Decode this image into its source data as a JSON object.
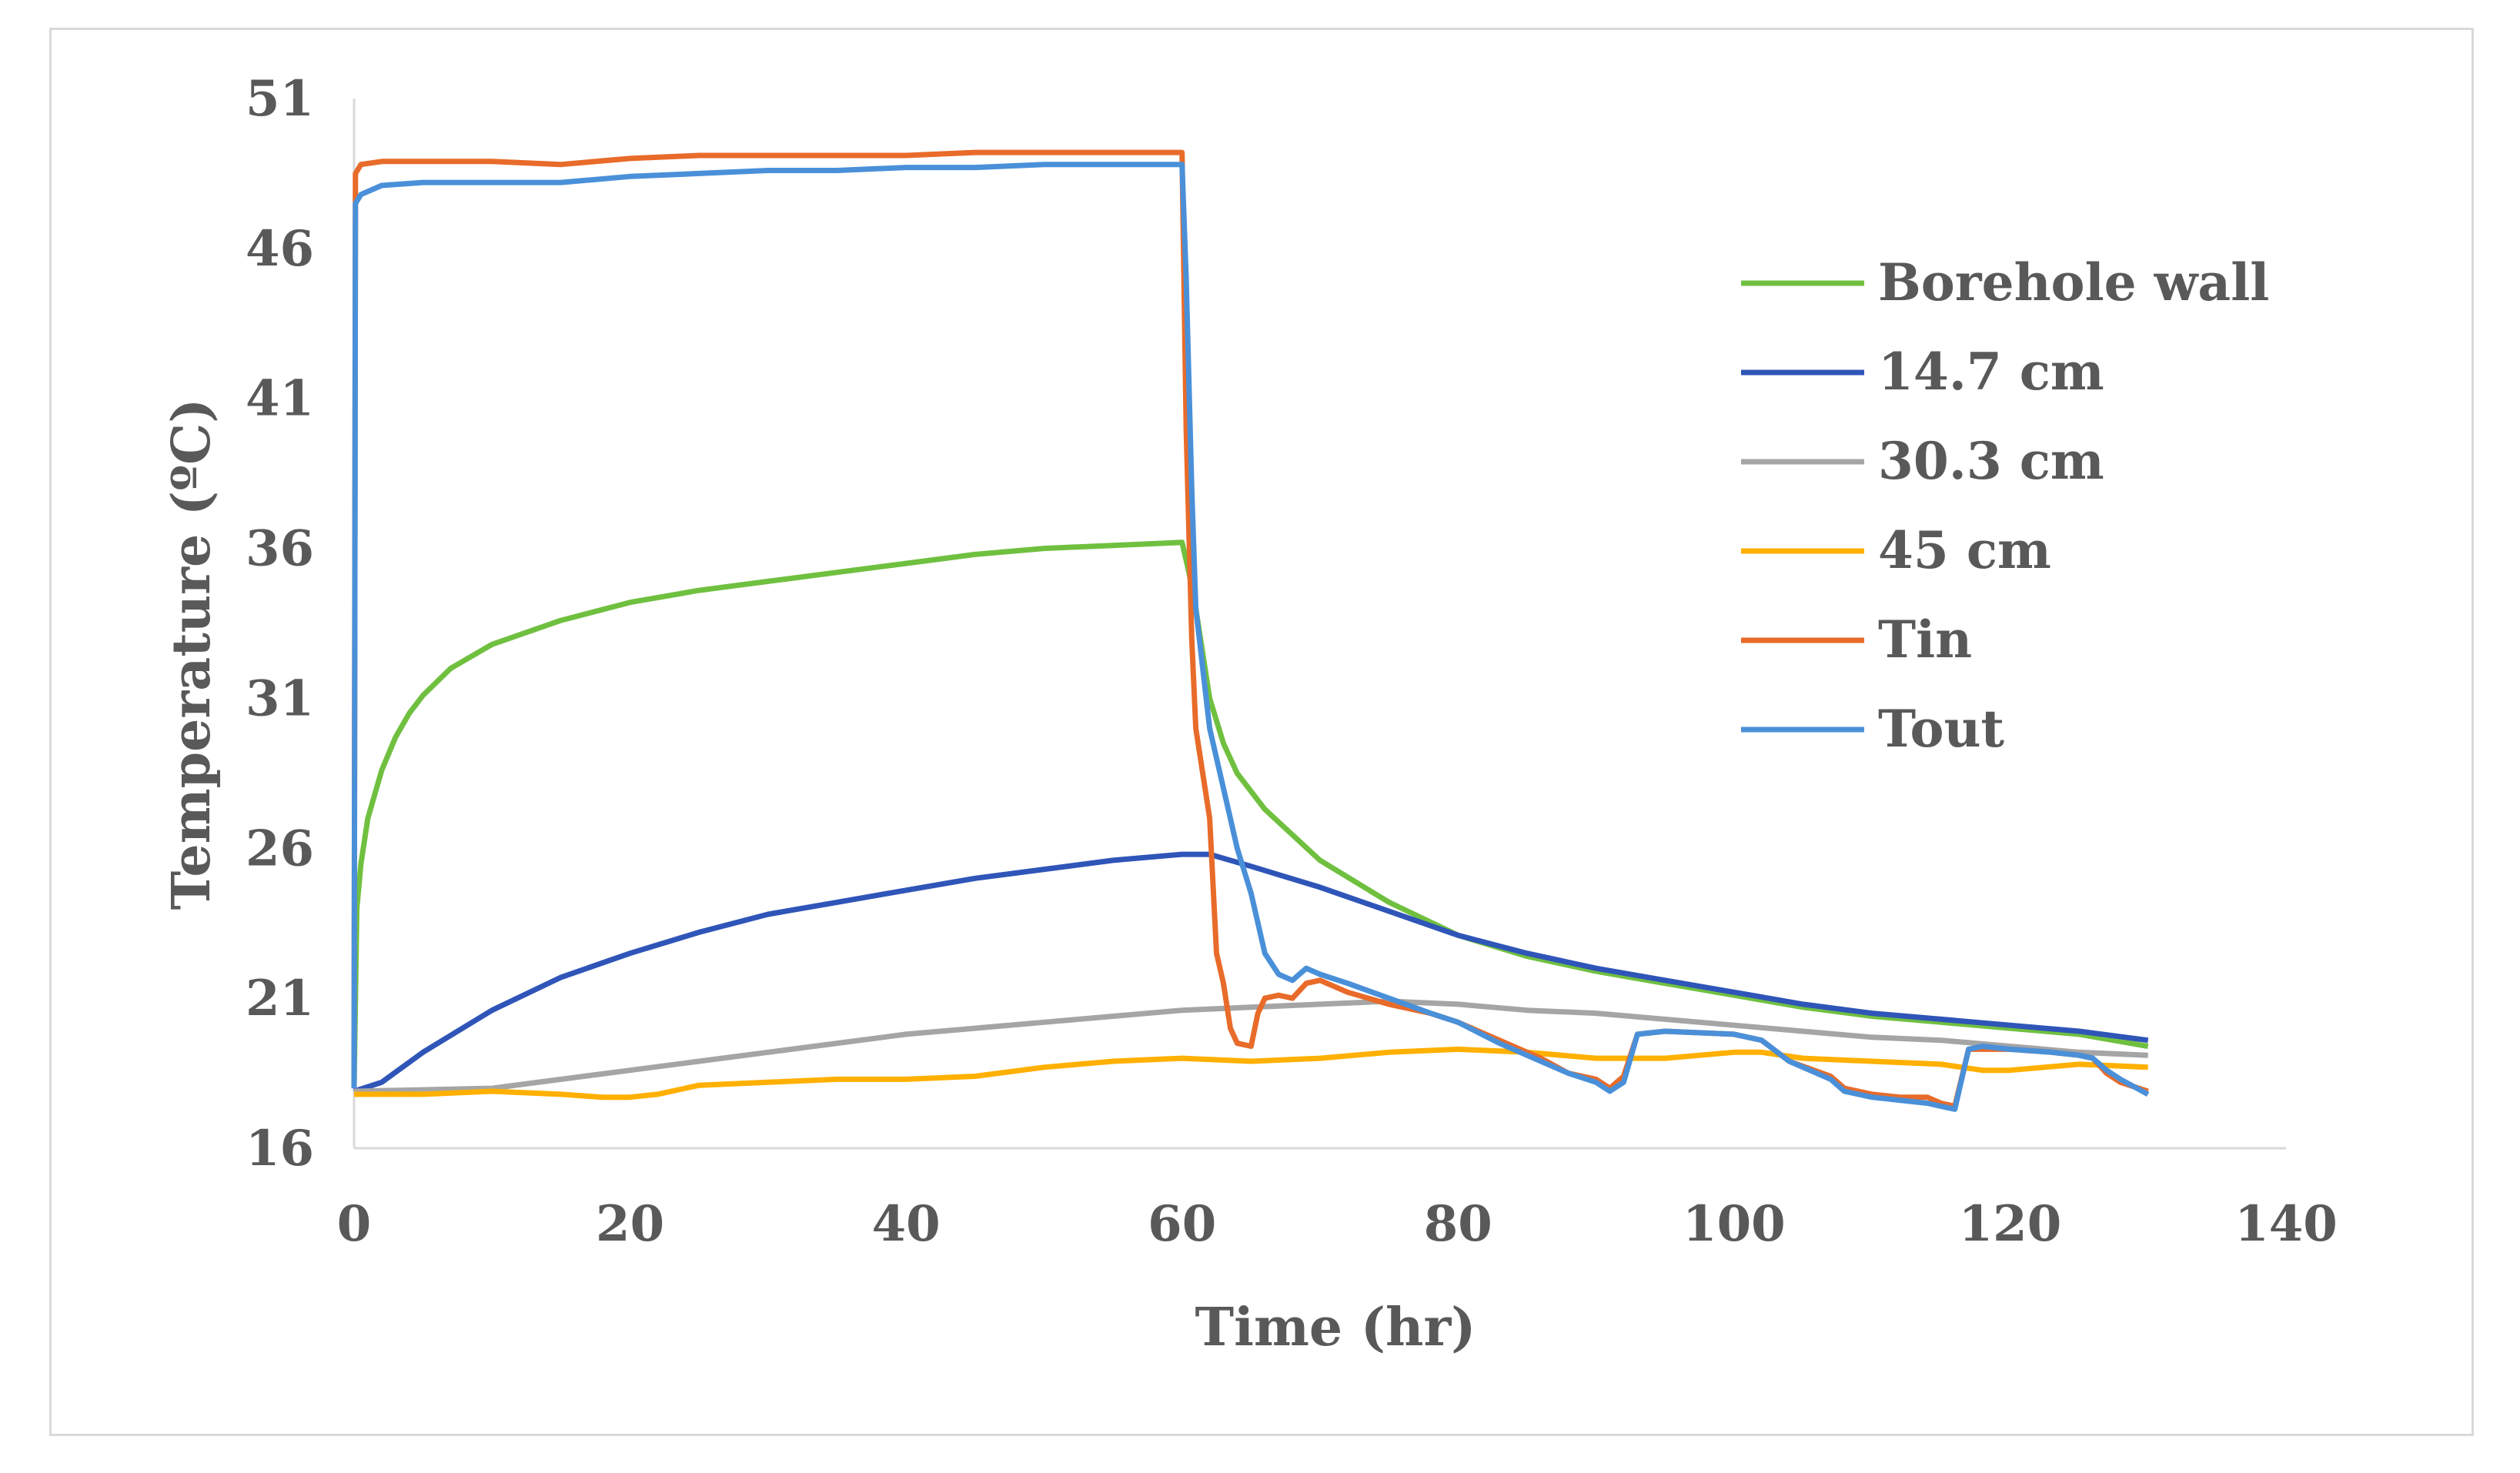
{
  "chart_data": {
    "type": "line",
    "title": "",
    "xlabel": "Time (hr)",
    "ylabel": "Temperature (ºC)",
    "xlim": [
      0,
      140
    ],
    "ylim": [
      16,
      51
    ],
    "xticks": [
      "0",
      "20",
      "40",
      "60",
      "80",
      "100",
      "120",
      "140"
    ],
    "yticks": [
      "16",
      "21",
      "26",
      "31",
      "36",
      "41",
      "46",
      "51"
    ],
    "grid": false,
    "legend_position": "right",
    "series": [
      {
        "name": "Borehole wall",
        "color": "#70c040",
        "points": [
          [
            0,
            18.0
          ],
          [
            0.2,
            24.0
          ],
          [
            0.5,
            25.5
          ],
          [
            1,
            27.0
          ],
          [
            2,
            28.6
          ],
          [
            3,
            29.7
          ],
          [
            4,
            30.5
          ],
          [
            5,
            31.1
          ],
          [
            7,
            32.0
          ],
          [
            10,
            32.8
          ],
          [
            15,
            33.6
          ],
          [
            20,
            34.2
          ],
          [
            25,
            34.6
          ],
          [
            30,
            34.9
          ],
          [
            35,
            35.2
          ],
          [
            40,
            35.5
          ],
          [
            45,
            35.8
          ],
          [
            50,
            36.0
          ],
          [
            55,
            36.1
          ],
          [
            60,
            36.2
          ],
          [
            60.5,
            35.2
          ],
          [
            61,
            34.0
          ],
          [
            62,
            31.0
          ],
          [
            63,
            29.5
          ],
          [
            64,
            28.5
          ],
          [
            66,
            27.3
          ],
          [
            70,
            25.6
          ],
          [
            75,
            24.2
          ],
          [
            80,
            23.1
          ],
          [
            85,
            22.4
          ],
          [
            90,
            21.9
          ],
          [
            95,
            21.5
          ],
          [
            100,
            21.1
          ],
          [
            105,
            20.7
          ],
          [
            110,
            20.4
          ],
          [
            115,
            20.2
          ],
          [
            120,
            20.0
          ],
          [
            125,
            19.8
          ],
          [
            130,
            19.4
          ]
        ]
      },
      {
        "name": "14.7 cm",
        "color": "#2f55b8",
        "points": [
          [
            0,
            17.9
          ],
          [
            2,
            18.2
          ],
          [
            5,
            19.2
          ],
          [
            10,
            20.6
          ],
          [
            15,
            21.7
          ],
          [
            20,
            22.5
          ],
          [
            25,
            23.2
          ],
          [
            30,
            23.8
          ],
          [
            35,
            24.2
          ],
          [
            40,
            24.6
          ],
          [
            45,
            25.0
          ],
          [
            50,
            25.3
          ],
          [
            55,
            25.6
          ],
          [
            60,
            25.8
          ],
          [
            62,
            25.8
          ],
          [
            65,
            25.4
          ],
          [
            70,
            24.7
          ],
          [
            75,
            23.9
          ],
          [
            80,
            23.1
          ],
          [
            85,
            22.5
          ],
          [
            90,
            22.0
          ],
          [
            95,
            21.6
          ],
          [
            100,
            21.2
          ],
          [
            105,
            20.8
          ],
          [
            110,
            20.5
          ],
          [
            115,
            20.3
          ],
          [
            120,
            20.1
          ],
          [
            125,
            19.9
          ],
          [
            130,
            19.6
          ]
        ]
      },
      {
        "name": "30.3 cm",
        "color": "#a5a5a5",
        "points": [
          [
            0,
            17.9
          ],
          [
            10,
            18.0
          ],
          [
            15,
            18.3
          ],
          [
            20,
            18.6
          ],
          [
            25,
            18.9
          ],
          [
            30,
            19.2
          ],
          [
            35,
            19.5
          ],
          [
            40,
            19.8
          ],
          [
            45,
            20.0
          ],
          [
            50,
            20.2
          ],
          [
            55,
            20.4
          ],
          [
            60,
            20.6
          ],
          [
            65,
            20.7
          ],
          [
            70,
            20.8
          ],
          [
            75,
            20.9
          ],
          [
            80,
            20.8
          ],
          [
            85,
            20.6
          ],
          [
            90,
            20.5
          ],
          [
            95,
            20.3
          ],
          [
            100,
            20.1
          ],
          [
            105,
            19.9
          ],
          [
            110,
            19.7
          ],
          [
            115,
            19.6
          ],
          [
            120,
            19.4
          ],
          [
            125,
            19.2
          ],
          [
            130,
            19.1
          ]
        ]
      },
      {
        "name": "45 cm",
        "color": "#ffb000",
        "points": [
          [
            0,
            17.8
          ],
          [
            5,
            17.8
          ],
          [
            10,
            17.9
          ],
          [
            15,
            17.8
          ],
          [
            18,
            17.7
          ],
          [
            20,
            17.7
          ],
          [
            22,
            17.8
          ],
          [
            25,
            18.1
          ],
          [
            30,
            18.2
          ],
          [
            35,
            18.3
          ],
          [
            40,
            18.3
          ],
          [
            45,
            18.4
          ],
          [
            50,
            18.7
          ],
          [
            55,
            18.9
          ],
          [
            60,
            19.0
          ],
          [
            65,
            18.9
          ],
          [
            70,
            19.0
          ],
          [
            75,
            19.2
          ],
          [
            80,
            19.3
          ],
          [
            85,
            19.2
          ],
          [
            90,
            19.0
          ],
          [
            95,
            19.0
          ],
          [
            100,
            19.2
          ],
          [
            102,
            19.2
          ],
          [
            105,
            19.0
          ],
          [
            110,
            18.9
          ],
          [
            115,
            18.8
          ],
          [
            118,
            18.6
          ],
          [
            120,
            18.6
          ],
          [
            125,
            18.8
          ],
          [
            130,
            18.7
          ]
        ]
      },
      {
        "name": "Tin",
        "color": "#e86b2a",
        "points": [
          [
            0,
            18.0
          ],
          [
            0.1,
            48.5
          ],
          [
            0.5,
            48.8
          ],
          [
            2,
            48.9
          ],
          [
            5,
            48.9
          ],
          [
            10,
            48.9
          ],
          [
            15,
            48.8
          ],
          [
            20,
            49.0
          ],
          [
            25,
            49.1
          ],
          [
            30,
            49.1
          ],
          [
            35,
            49.1
          ],
          [
            40,
            49.1
          ],
          [
            45,
            49.2
          ],
          [
            50,
            49.2
          ],
          [
            55,
            49.2
          ],
          [
            60,
            49.2
          ],
          [
            60.3,
            40.0
          ],
          [
            60.7,
            33.0
          ],
          [
            61,
            30.0
          ],
          [
            62,
            27.0
          ],
          [
            62.5,
            22.5
          ],
          [
            63,
            21.5
          ],
          [
            63.5,
            20.0
          ],
          [
            64,
            19.5
          ],
          [
            65,
            19.4
          ],
          [
            65.5,
            20.5
          ],
          [
            66,
            21.0
          ],
          [
            67,
            21.1
          ],
          [
            68,
            21.0
          ],
          [
            69,
            21.5
          ],
          [
            70,
            21.6
          ],
          [
            72,
            21.2
          ],
          [
            75,
            20.8
          ],
          [
            78,
            20.5
          ],
          [
            80,
            20.2
          ],
          [
            83,
            19.6
          ],
          [
            86,
            19.0
          ],
          [
            88,
            18.5
          ],
          [
            90,
            18.3
          ],
          [
            91,
            18.0
          ],
          [
            92,
            18.4
          ],
          [
            93,
            19.8
          ],
          [
            95,
            19.9
          ],
          [
            100,
            19.8
          ],
          [
            102,
            19.6
          ],
          [
            104,
            18.9
          ],
          [
            107,
            18.4
          ],
          [
            108,
            18.0
          ],
          [
            110,
            17.8
          ],
          [
            112,
            17.7
          ],
          [
            114,
            17.7
          ],
          [
            115,
            17.5
          ],
          [
            116,
            17.4
          ],
          [
            117,
            19.3
          ],
          [
            118,
            19.3
          ],
          [
            120,
            19.3
          ],
          [
            123,
            19.2
          ],
          [
            125,
            19.1
          ],
          [
            126,
            19.0
          ],
          [
            127,
            18.5
          ],
          [
            128,
            18.2
          ],
          [
            130,
            17.9
          ]
        ]
      },
      {
        "name": "Tout",
        "color": "#4a90d9",
        "points": [
          [
            0,
            18.0
          ],
          [
            0.1,
            47.5
          ],
          [
            0.5,
            47.8
          ],
          [
            2,
            48.1
          ],
          [
            5,
            48.2
          ],
          [
            10,
            48.2
          ],
          [
            15,
            48.2
          ],
          [
            20,
            48.4
          ],
          [
            25,
            48.5
          ],
          [
            30,
            48.6
          ],
          [
            35,
            48.6
          ],
          [
            40,
            48.7
          ],
          [
            45,
            48.7
          ],
          [
            50,
            48.8
          ],
          [
            55,
            48.8
          ],
          [
            60,
            48.8
          ],
          [
            60.3,
            45.0
          ],
          [
            60.7,
            38.0
          ],
          [
            61,
            34.0
          ],
          [
            62,
            30.0
          ],
          [
            63,
            28.0
          ],
          [
            64,
            26.0
          ],
          [
            65,
            24.5
          ],
          [
            66,
            22.5
          ],
          [
            67,
            21.8
          ],
          [
            68,
            21.6
          ],
          [
            69,
            22.0
          ],
          [
            70,
            21.8
          ],
          [
            72,
            21.5
          ],
          [
            75,
            21.0
          ],
          [
            78,
            20.5
          ],
          [
            80,
            20.2
          ],
          [
            83,
            19.5
          ],
          [
            86,
            18.9
          ],
          [
            88,
            18.5
          ],
          [
            90,
            18.2
          ],
          [
            91,
            17.9
          ],
          [
            92,
            18.2
          ],
          [
            93,
            19.8
          ],
          [
            95,
            19.9
          ],
          [
            100,
            19.8
          ],
          [
            102,
            19.6
          ],
          [
            104,
            18.9
          ],
          [
            107,
            18.3
          ],
          [
            108,
            17.9
          ],
          [
            110,
            17.7
          ],
          [
            112,
            17.6
          ],
          [
            114,
            17.5
          ],
          [
            115,
            17.4
          ],
          [
            116,
            17.3
          ],
          [
            117,
            19.3
          ],
          [
            118,
            19.4
          ],
          [
            120,
            19.3
          ],
          [
            123,
            19.2
          ],
          [
            125,
            19.1
          ],
          [
            126,
            19.0
          ],
          [
            127,
            18.6
          ],
          [
            128,
            18.3
          ],
          [
            130,
            17.8
          ]
        ]
      }
    ]
  }
}
